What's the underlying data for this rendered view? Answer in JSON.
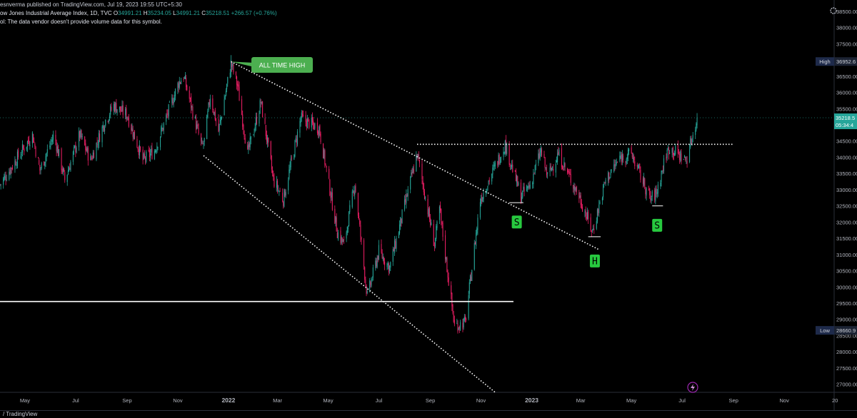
{
  "header": {
    "publisher_line": "esnverma published on TradingView.com, Jul 19, 2023 19:55 UTC+5:30",
    "symbol_name": "ow Jones Industrial Average Index, 1D, TVC",
    "ohlc": {
      "o_label": "O",
      "o_value": "34991.21",
      "h_label": "H",
      "h_value": "35234.05",
      "l_label": "L",
      "l_value": "34991.21",
      "c_label": "C",
      "c_value": "35218.51",
      "change": "+266.57 (+0.76%)"
    },
    "volume_note": "ol: The data vendor doesn't provide volume data for this symbol."
  },
  "footer": {
    "brand": "/ TradingView"
  },
  "colors": {
    "background": "#000000",
    "up_candle": "#26a69a",
    "down_candle": "#e91e63",
    "annotation_green": "#4caf50",
    "label_green": "#27c93f",
    "axis_text": "#b2b5be",
    "price_tag_bg": "#26a69a",
    "hl_tag_bg": "#1e2a4a"
  },
  "chart_data": {
    "type": "candlestick",
    "title": "",
    "x_tick_labels": [
      "May",
      "Jul",
      "Sep",
      "Nov",
      "2022",
      "Mar",
      "May",
      "Jul",
      "Sep",
      "Nov",
      "2023",
      "Mar",
      "May",
      "Jul",
      "Sep",
      "Nov",
      "20"
    ],
    "y_tick_labels": [
      "27000.00",
      "27500.00",
      "28000.00",
      "28500.00",
      "29000.00",
      "29500.00",
      "30000.00",
      "30500.00",
      "31000.00",
      "31500.00",
      "32000.00",
      "32500.00",
      "33000.00",
      "33500.00",
      "34000.00",
      "34500.00",
      "35000.00",
      "35500.00",
      "36000.00",
      "36500.00",
      "37000.00",
      "37500.00",
      "38000.00",
      "38500.00"
    ],
    "ylim": [
      26750,
      38850
    ],
    "x_range": [
      "2021-04-01",
      "2023-12-31"
    ],
    "series": [
      {
        "values": [
          {
            "date": "2021-04-01",
            "close": 33150
          },
          {
            "date": "2021-05-10",
            "close": 34700
          },
          {
            "date": "2021-05-19",
            "close": 33600
          },
          {
            "date": "2021-06-05",
            "close": 34700
          },
          {
            "date": "2021-06-18",
            "close": 33300
          },
          {
            "date": "2021-07-06",
            "close": 34700
          },
          {
            "date": "2021-07-19",
            "close": 33900
          },
          {
            "date": "2021-08-05",
            "close": 35100
          },
          {
            "date": "2021-08-16",
            "close": 35600
          },
          {
            "date": "2021-09-01",
            "close": 35300
          },
          {
            "date": "2021-09-20",
            "close": 33900
          },
          {
            "date": "2021-10-04",
            "close": 34200
          },
          {
            "date": "2021-11-02",
            "close": 36300
          },
          {
            "date": "2021-11-08",
            "close": 36500
          },
          {
            "date": "2021-11-30",
            "close": 34300
          },
          {
            "date": "2021-12-03",
            "close": 34500
          },
          {
            "date": "2021-12-10",
            "close": 35900
          },
          {
            "date": "2021-12-20",
            "close": 34800
          },
          {
            "date": "2022-01-04",
            "close": 36900
          },
          {
            "date": "2022-01-12",
            "close": 36200
          },
          {
            "date": "2022-01-24",
            "close": 34100
          },
          {
            "date": "2022-02-09",
            "close": 35700
          },
          {
            "date": "2022-02-24",
            "close": 33300
          },
          {
            "date": "2022-03-08",
            "close": 32700
          },
          {
            "date": "2022-03-29",
            "close": 35200
          },
          {
            "date": "2022-04-20",
            "close": 34900
          },
          {
            "date": "2022-05-12",
            "close": 31700
          },
          {
            "date": "2022-05-20",
            "close": 31300
          },
          {
            "date": "2022-06-02",
            "close": 33200
          },
          {
            "date": "2022-06-17",
            "close": 29700
          },
          {
            "date": "2022-07-01",
            "close": 31100
          },
          {
            "date": "2022-07-14",
            "close": 30600
          },
          {
            "date": "2022-08-16",
            "close": 34100
          },
          {
            "date": "2022-09-06",
            "close": 31300
          },
          {
            "date": "2022-09-12",
            "close": 32400
          },
          {
            "date": "2022-09-30",
            "close": 28800
          },
          {
            "date": "2022-10-13",
            "close": 28900
          },
          {
            "date": "2022-10-31",
            "close": 32700
          },
          {
            "date": "2022-11-30",
            "close": 34400
          },
          {
            "date": "2022-12-19",
            "close": 32800
          },
          {
            "date": "2022-12-30",
            "close": 33150
          },
          {
            "date": "2023-01-12",
            "close": 34200
          },
          {
            "date": "2023-01-20",
            "close": 33400
          },
          {
            "date": "2023-02-02",
            "close": 34100
          },
          {
            "date": "2023-02-27",
            "close": 32800
          },
          {
            "date": "2023-03-15",
            "close": 31700
          },
          {
            "date": "2023-03-31",
            "close": 33300
          },
          {
            "date": "2023-04-18",
            "close": 34000
          },
          {
            "date": "2023-05-01",
            "close": 34100
          },
          {
            "date": "2023-05-24",
            "close": 32700
          },
          {
            "date": "2023-05-31",
            "close": 32900
          },
          {
            "date": "2023-06-12",
            "close": 34100
          },
          {
            "date": "2023-06-16",
            "close": 34300
          },
          {
            "date": "2023-07-06",
            "close": 33900
          },
          {
            "date": "2023-07-19",
            "close": 35218.51
          }
        ]
      }
    ],
    "high_tag": {
      "label": "High",
      "value": "36952.6"
    },
    "low_tag": {
      "label": "Low",
      "value": "28660.9"
    },
    "last_price_tag": {
      "value": "35218.5",
      "countdown": "05:34:4"
    },
    "annotations": {
      "callout": "ALL TIME HIGH",
      "pattern_labels": [
        "S",
        "H",
        "S"
      ]
    },
    "drawings": [
      {
        "name": "upper-trendline",
        "from": {
          "date": "2022-01-04",
          "price": 36950
        },
        "to": {
          "date": "2023-03-23",
          "price": 31150
        }
      },
      {
        "name": "lower-trendline",
        "from": {
          "date": "2021-12-02",
          "price": 34050
        },
        "to": {
          "date": "2022-11-18",
          "price": 26750
        }
      },
      {
        "name": "neckline",
        "from": {
          "date": "2022-08-16",
          "price": 34400
        },
        "to": {
          "date": "2023-08-31",
          "price": 34400
        }
      },
      {
        "name": "support-line",
        "from": {
          "date": "2021-04-01",
          "price": 29550
        },
        "to": {
          "date": "2022-12-10",
          "price": 29550
        }
      },
      {
        "name": "shoulder-left-mark",
        "from": {
          "date": "2022-12-05",
          "price": 32600
        },
        "to": {
          "date": "2022-12-22",
          "price": 32600
        }
      },
      {
        "name": "head-mark",
        "from": {
          "date": "2023-03-10",
          "price": 31550
        },
        "to": {
          "date": "2023-03-25",
          "price": 31550
        }
      },
      {
        "name": "shoulder-right-mark",
        "from": {
          "date": "2023-05-26",
          "price": 32500
        },
        "to": {
          "date": "2023-06-08",
          "price": 32500
        }
      }
    ],
    "grid": false,
    "legend": "none"
  }
}
